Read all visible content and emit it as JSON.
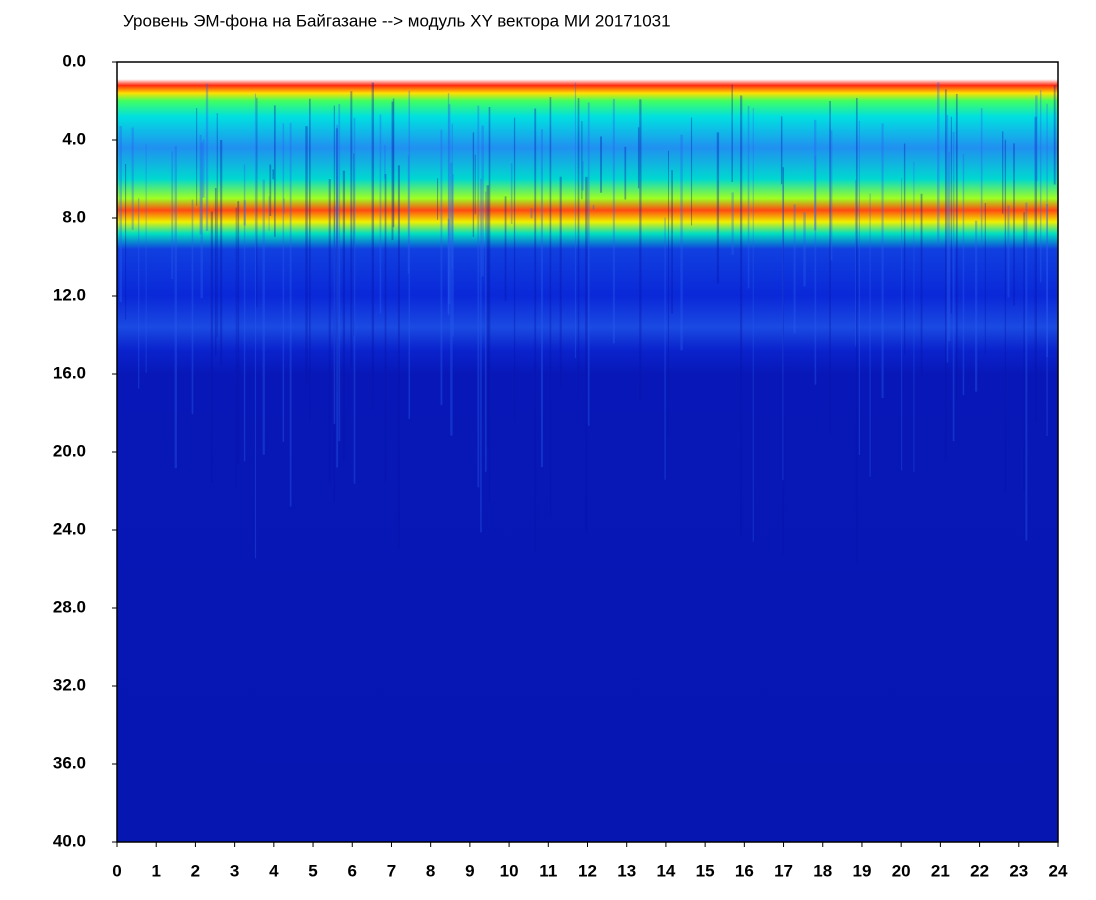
{
  "chart_data": {
    "type": "spectrogram",
    "title": "Уровень ЭМ-фона на Байгазане  -->  модуль XY вектора МИ  20171031",
    "xlim": [
      0,
      24
    ],
    "xticks": [
      0,
      1,
      2,
      3,
      4,
      5,
      6,
      7,
      8,
      9,
      10,
      11,
      12,
      13,
      14,
      15,
      16,
      17,
      18,
      19,
      20,
      21,
      22,
      23,
      24
    ],
    "ylim": [
      0,
      40
    ],
    "y_inverted": true,
    "yticks": [
      {
        "value": 0,
        "label": "0.0"
      },
      {
        "value": 4,
        "label": "4.0"
      },
      {
        "value": 8,
        "label": "8.0"
      },
      {
        "value": 12,
        "label": "12.0"
      },
      {
        "value": 16,
        "label": "16.0"
      },
      {
        "value": 20,
        "label": "20.0"
      },
      {
        "value": 24,
        "label": "24.0"
      },
      {
        "value": 28,
        "label": "28.0"
      },
      {
        "value": 32,
        "label": "32.0"
      },
      {
        "value": 36,
        "label": "36.0"
      },
      {
        "value": 40,
        "label": "40.0"
      }
    ],
    "grid": false
  }
}
